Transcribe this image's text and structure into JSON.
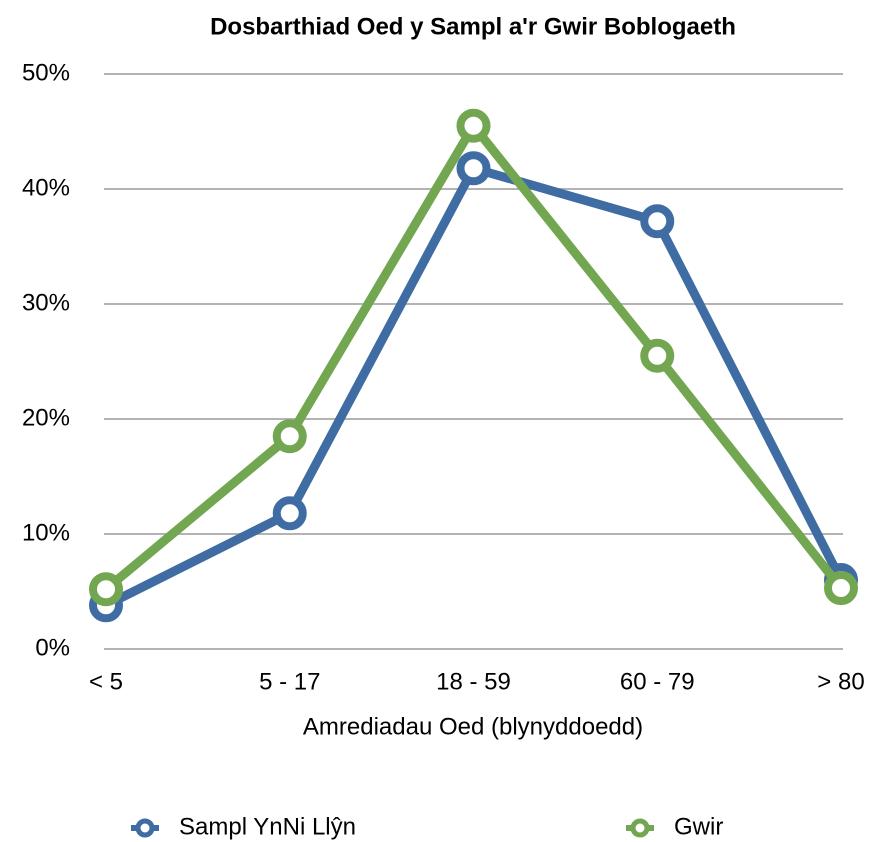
{
  "chart_data": {
    "type": "line",
    "title": "Dosbarthiad Oed y Sampl a'r Gwir Boblogaeth",
    "x_label": "Amrediadau Oed (blynyddoedd)",
    "categories": [
      "< 5",
      "5 - 17",
      "18 - 59",
      "60 - 79",
      "> 80"
    ],
    "series": [
      {
        "name": "Sampl YnNi Llŷn",
        "color": "#3f6da3",
        "values": [
          3.8,
          11.8,
          41.8,
          37.2,
          6.0
        ]
      },
      {
        "name": "Gwir",
        "color": "#72a651",
        "values": [
          5.2,
          18.5,
          45.5,
          25.5,
          5.3
        ]
      }
    ],
    "ylim": [
      0,
      50
    ],
    "yticks": [
      {
        "value": 0,
        "label": "0%"
      },
      {
        "value": 10,
        "label": "10%"
      },
      {
        "value": 20,
        "label": "20%"
      },
      {
        "value": 30,
        "label": "30%"
      },
      {
        "value": 40,
        "label": "40%"
      },
      {
        "value": 50,
        "label": "50%"
      }
    ],
    "grid": true,
    "legend": "bottom"
  }
}
